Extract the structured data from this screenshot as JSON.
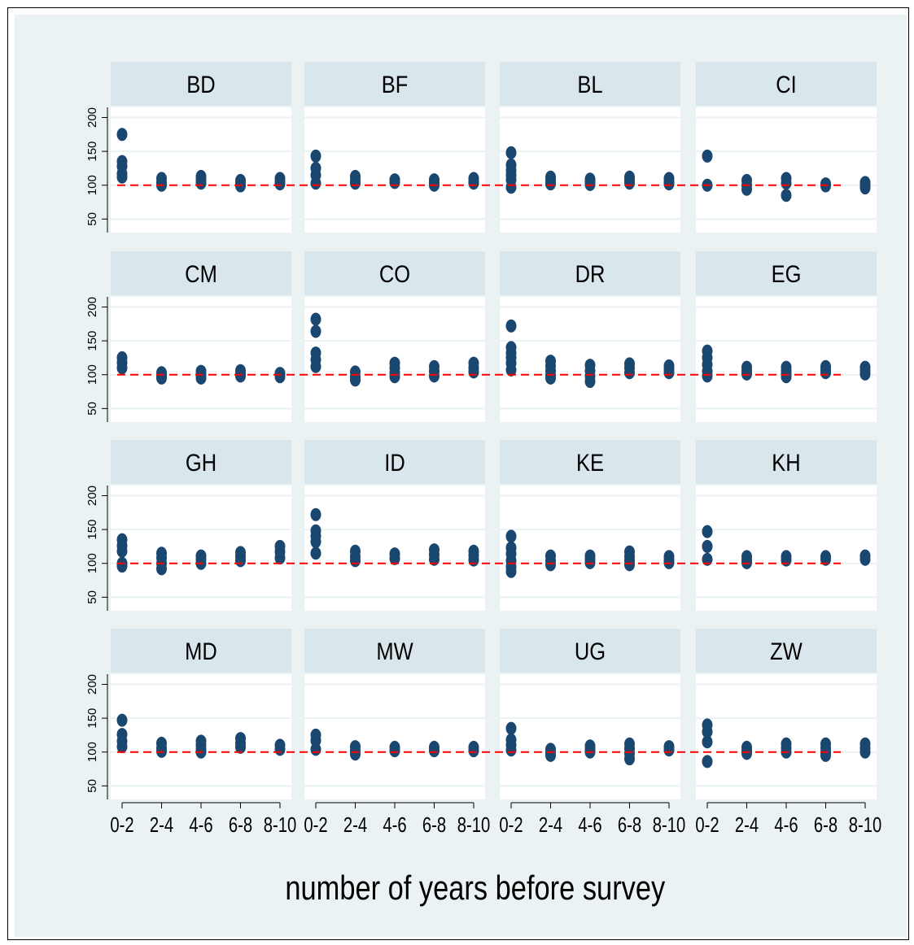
{
  "chart_data": {
    "type": "scatter",
    "xlabel": "number of years before survey",
    "ylabel": "",
    "x_categories": [
      "0-2",
      "2-4",
      "4-6",
      "6-8",
      "8-10"
    ],
    "y_ticks": [
      "50",
      "100",
      "150",
      "200"
    ],
    "ylim": [
      30,
      215
    ],
    "reference_line_y": 100,
    "grid": true,
    "colors": {
      "figure_bg": "#eaf2f3",
      "panel_bg": "#ffffff",
      "strip_bg": "#d9e6eb",
      "marker": "#1a476f",
      "reference": "#ff0000",
      "grid": "#eaf2f3"
    },
    "panels": [
      {
        "country": "BD",
        "points": [
          [
            0,
            175
          ],
          [
            0,
            135
          ],
          [
            0,
            128
          ],
          [
            0,
            117
          ],
          [
            0,
            112
          ],
          [
            1,
            110
          ],
          [
            1,
            104
          ],
          [
            1,
            100
          ],
          [
            2,
            113
          ],
          [
            2,
            108
          ],
          [
            2,
            103
          ],
          [
            3,
            107
          ],
          [
            3,
            103
          ],
          [
            3,
            99
          ],
          [
            4,
            110
          ],
          [
            4,
            106
          ],
          [
            4,
            102
          ]
        ]
      },
      {
        "country": "BF",
        "points": [
          [
            0,
            143
          ],
          [
            0,
            125
          ],
          [
            0,
            115
          ],
          [
            0,
            103
          ],
          [
            1,
            113
          ],
          [
            1,
            107
          ],
          [
            1,
            103
          ],
          [
            2,
            108
          ],
          [
            2,
            104
          ],
          [
            3,
            108
          ],
          [
            3,
            104
          ],
          [
            3,
            100
          ],
          [
            4,
            110
          ],
          [
            4,
            106
          ],
          [
            4,
            103
          ]
        ]
      },
      {
        "country": "BL",
        "points": [
          [
            0,
            148
          ],
          [
            0,
            130
          ],
          [
            0,
            122
          ],
          [
            0,
            115
          ],
          [
            0,
            108
          ],
          [
            0,
            97
          ],
          [
            1,
            112
          ],
          [
            1,
            107
          ],
          [
            1,
            102
          ],
          [
            2,
            109
          ],
          [
            2,
            105
          ],
          [
            2,
            101
          ],
          [
            3,
            112
          ],
          [
            3,
            107
          ],
          [
            3,
            103
          ],
          [
            4,
            110
          ],
          [
            4,
            106
          ],
          [
            4,
            102
          ]
        ]
      },
      {
        "country": "CI",
        "points": [
          [
            0,
            143
          ],
          [
            0,
            100
          ],
          [
            1,
            107
          ],
          [
            1,
            100
          ],
          [
            1,
            94
          ],
          [
            2,
            110
          ],
          [
            2,
            103
          ],
          [
            2,
            85
          ],
          [
            3,
            102
          ],
          [
            3,
            99
          ],
          [
            4,
            104
          ],
          [
            4,
            100
          ],
          [
            4,
            96
          ]
        ]
      },
      {
        "country": "CM",
        "points": [
          [
            0,
            125
          ],
          [
            0,
            118
          ],
          [
            0,
            110
          ],
          [
            1,
            103
          ],
          [
            1,
            98
          ],
          [
            1,
            95
          ],
          [
            2,
            105
          ],
          [
            2,
            100
          ],
          [
            2,
            95
          ],
          [
            3,
            106
          ],
          [
            3,
            102
          ],
          [
            3,
            98
          ],
          [
            4,
            102
          ],
          [
            4,
            97
          ]
        ]
      },
      {
        "country": "CO",
        "points": [
          [
            0,
            182
          ],
          [
            0,
            164
          ],
          [
            0,
            132
          ],
          [
            0,
            122
          ],
          [
            0,
            112
          ],
          [
            1,
            104
          ],
          [
            1,
            97
          ],
          [
            1,
            92
          ],
          [
            2,
            117
          ],
          [
            2,
            110
          ],
          [
            2,
            103
          ],
          [
            2,
            97
          ],
          [
            3,
            112
          ],
          [
            3,
            105
          ],
          [
            3,
            98
          ],
          [
            4,
            117
          ],
          [
            4,
            110
          ],
          [
            4,
            104
          ]
        ]
      },
      {
        "country": "DR",
        "points": [
          [
            0,
            172
          ],
          [
            0,
            140
          ],
          [
            0,
            132
          ],
          [
            0,
            125
          ],
          [
            0,
            117
          ],
          [
            0,
            107
          ],
          [
            1,
            120
          ],
          [
            1,
            113
          ],
          [
            1,
            106
          ],
          [
            1,
            99
          ],
          [
            1,
            95
          ],
          [
            2,
            114
          ],
          [
            2,
            106
          ],
          [
            2,
            98
          ],
          [
            2,
            90
          ],
          [
            3,
            116
          ],
          [
            3,
            110
          ],
          [
            3,
            103
          ],
          [
            4,
            113
          ],
          [
            4,
            108
          ],
          [
            4,
            103
          ]
        ]
      },
      {
        "country": "EG",
        "points": [
          [
            0,
            135
          ],
          [
            0,
            125
          ],
          [
            0,
            115
          ],
          [
            0,
            105
          ],
          [
            0,
            98
          ],
          [
            1,
            111
          ],
          [
            1,
            106
          ],
          [
            1,
            101
          ],
          [
            2,
            111
          ],
          [
            2,
            106
          ],
          [
            2,
            101
          ],
          [
            2,
            97
          ],
          [
            3,
            112
          ],
          [
            3,
            107
          ],
          [
            3,
            103
          ],
          [
            4,
            111
          ],
          [
            4,
            106
          ],
          [
            4,
            101
          ]
        ]
      },
      {
        "country": "GH",
        "points": [
          [
            0,
            135
          ],
          [
            0,
            126
          ],
          [
            0,
            118
          ],
          [
            0,
            100
          ],
          [
            0,
            96
          ],
          [
            1,
            115
          ],
          [
            1,
            108
          ],
          [
            1,
            100
          ],
          [
            1,
            92
          ],
          [
            2,
            111
          ],
          [
            2,
            106
          ],
          [
            2,
            100
          ],
          [
            3,
            116
          ],
          [
            3,
            110
          ],
          [
            3,
            104
          ],
          [
            4,
            125
          ],
          [
            4,
            117
          ],
          [
            4,
            108
          ]
        ]
      },
      {
        "country": "ID",
        "points": [
          [
            0,
            172
          ],
          [
            0,
            148
          ],
          [
            0,
            140
          ],
          [
            0,
            132
          ],
          [
            0,
            115
          ],
          [
            1,
            118
          ],
          [
            1,
            110
          ],
          [
            1,
            104
          ],
          [
            2,
            114
          ],
          [
            2,
            107
          ],
          [
            3,
            120
          ],
          [
            3,
            113
          ],
          [
            3,
            106
          ],
          [
            4,
            118
          ],
          [
            4,
            112
          ],
          [
            4,
            105
          ]
        ]
      },
      {
        "country": "KE",
        "points": [
          [
            0,
            140
          ],
          [
            0,
            123
          ],
          [
            0,
            114
          ],
          [
            0,
            104
          ],
          [
            0,
            95
          ],
          [
            0,
            88
          ],
          [
            1,
            111
          ],
          [
            1,
            104
          ],
          [
            1,
            98
          ],
          [
            2,
            111
          ],
          [
            2,
            106
          ],
          [
            2,
            101
          ],
          [
            3,
            117
          ],
          [
            3,
            110
          ],
          [
            3,
            104
          ],
          [
            3,
            98
          ],
          [
            4,
            110
          ],
          [
            4,
            105
          ],
          [
            4,
            101
          ]
        ]
      },
      {
        "country": "KH",
        "points": [
          [
            0,
            147
          ],
          [
            0,
            125
          ],
          [
            0,
            106
          ],
          [
            1,
            110
          ],
          [
            1,
            105
          ],
          [
            1,
            101
          ],
          [
            2,
            110
          ],
          [
            2,
            105
          ],
          [
            3,
            110
          ],
          [
            3,
            106
          ],
          [
            4,
            111
          ],
          [
            4,
            106
          ]
        ]
      },
      {
        "country": "MD",
        "points": [
          [
            0,
            147
          ],
          [
            0,
            126
          ],
          [
            0,
            116
          ],
          [
            0,
            108
          ],
          [
            1,
            113
          ],
          [
            1,
            106
          ],
          [
            1,
            101
          ],
          [
            2,
            116
          ],
          [
            2,
            110
          ],
          [
            2,
            104
          ],
          [
            2,
            100
          ],
          [
            3,
            120
          ],
          [
            3,
            113
          ],
          [
            3,
            107
          ],
          [
            4,
            110
          ],
          [
            4,
            104
          ]
        ]
      },
      {
        "country": "MW",
        "points": [
          [
            0,
            125
          ],
          [
            0,
            117
          ],
          [
            0,
            104
          ],
          [
            1,
            108
          ],
          [
            1,
            102
          ],
          [
            1,
            97
          ],
          [
            2,
            107
          ],
          [
            2,
            102
          ],
          [
            3,
            107
          ],
          [
            3,
            102
          ],
          [
            4,
            107
          ],
          [
            4,
            102
          ]
        ]
      },
      {
        "country": "UG",
        "points": [
          [
            0,
            135
          ],
          [
            0,
            118
          ],
          [
            0,
            110
          ],
          [
            0,
            103
          ],
          [
            1,
            104
          ],
          [
            1,
            99
          ],
          [
            1,
            95
          ],
          [
            2,
            109
          ],
          [
            2,
            104
          ],
          [
            2,
            100
          ],
          [
            3,
            112
          ],
          [
            3,
            105
          ],
          [
            3,
            98
          ],
          [
            3,
            90
          ],
          [
            4,
            108
          ],
          [
            4,
            103
          ]
        ]
      },
      {
        "country": "ZW",
        "points": [
          [
            0,
            140
          ],
          [
            0,
            130
          ],
          [
            0,
            115
          ],
          [
            0,
            86
          ],
          [
            1,
            107
          ],
          [
            1,
            102
          ],
          [
            1,
            98
          ],
          [
            2,
            112
          ],
          [
            2,
            106
          ],
          [
            2,
            100
          ],
          [
            3,
            112
          ],
          [
            3,
            106
          ],
          [
            3,
            100
          ],
          [
            3,
            95
          ],
          [
            4,
            112
          ],
          [
            4,
            106
          ],
          [
            4,
            100
          ]
        ]
      }
    ]
  }
}
